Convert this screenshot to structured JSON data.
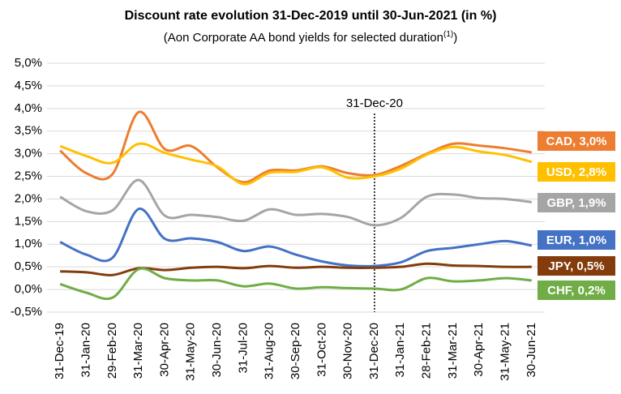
{
  "chart_data": {
    "type": "line",
    "title": "Discount rate evolution 31-Dec-2019 until 30-Jun-2021 (in %)",
    "subtitle": [
      "(Aon Corporate AA bond yields for selected duration",
      "(1)",
      ")"
    ],
    "categories": [
      "31-Dec-19",
      "31-Jan-20",
      "29-Feb-20",
      "31-Mar-20",
      "30-Apr-20",
      "31-May-20",
      "30-Jun-20",
      "31-Jul-20",
      "31-Aug-20",
      "30-Sep-20",
      "31-Oct-20",
      "30-Nov-20",
      "31-Dec-20",
      "31-Jan-21",
      "28-Feb-21",
      "31-Mar-21",
      "30-Apr-21",
      "31-May-21",
      "30-Jun-21"
    ],
    "series": [
      {
        "name": "CAD, 3,0%",
        "color": "#ED7D31",
        "values": [
          3.07,
          2.57,
          2.55,
          3.92,
          3.1,
          3.17,
          2.7,
          2.37,
          2.63,
          2.63,
          2.72,
          2.57,
          2.53,
          2.73,
          3.0,
          3.22,
          3.18,
          3.12,
          3.03
        ]
      },
      {
        "name": "USD, 2,8%",
        "color": "#FFC000",
        "values": [
          3.17,
          2.95,
          2.8,
          3.22,
          3.02,
          2.87,
          2.72,
          2.33,
          2.58,
          2.6,
          2.7,
          2.47,
          2.5,
          2.67,
          2.98,
          3.15,
          3.05,
          2.97,
          2.82
        ]
      },
      {
        "name": "GBP, 1,9%",
        "color": "#A5A5A5",
        "values": [
          2.05,
          1.73,
          1.75,
          2.42,
          1.63,
          1.65,
          1.6,
          1.52,
          1.77,
          1.65,
          1.67,
          1.6,
          1.42,
          1.58,
          2.05,
          2.1,
          2.02,
          2.0,
          1.93
        ]
      },
      {
        "name": "EUR, 1,0%",
        "color": "#4472C4",
        "values": [
          1.05,
          0.77,
          0.7,
          1.78,
          1.12,
          1.13,
          1.05,
          0.85,
          0.95,
          0.77,
          0.62,
          0.53,
          0.52,
          0.6,
          0.85,
          0.92,
          1.0,
          1.07,
          0.97
        ]
      },
      {
        "name": "JPY, 0,5%",
        "color": "#843C0C",
        "values": [
          0.4,
          0.38,
          0.32,
          0.47,
          0.43,
          0.48,
          0.5,
          0.47,
          0.52,
          0.48,
          0.5,
          0.48,
          0.48,
          0.5,
          0.57,
          0.53,
          0.52,
          0.5,
          0.5
        ]
      },
      {
        "name": "CHF, 0,2%",
        "color": "#70AD47",
        "values": [
          0.12,
          -0.07,
          -0.18,
          0.45,
          0.25,
          0.2,
          0.2,
          0.07,
          0.13,
          0.02,
          0.05,
          0.03,
          0.02,
          0.0,
          0.25,
          0.18,
          0.2,
          0.25,
          0.2
        ]
      }
    ],
    "ylim": [
      -0.5,
      5.0
    ],
    "yticks": [
      {
        "value": -0.5,
        "label": "-0,5%"
      },
      {
        "value": 0,
        "label": "0,0%"
      },
      {
        "value": 0.5,
        "label": "0,5%"
      },
      {
        "value": 1.0,
        "label": "1,0%"
      },
      {
        "value": 1.5,
        "label": "1,5%"
      },
      {
        "value": 2.0,
        "label": "2,0%"
      },
      {
        "value": 2.5,
        "label": "2,5%"
      },
      {
        "value": 3.0,
        "label": "3,0%"
      },
      {
        "value": 3.5,
        "label": "3,5%"
      },
      {
        "value": 4.0,
        "label": "4,0%"
      },
      {
        "value": 4.5,
        "label": "4,5%"
      },
      {
        "value": 5.0,
        "label": "5,0%"
      }
    ],
    "grid": true,
    "annotation": "31-Dec-20"
  }
}
